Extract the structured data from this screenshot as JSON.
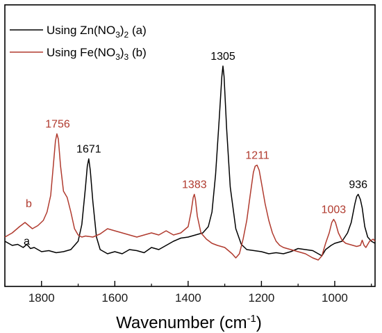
{
  "chart_data": {
    "type": "line",
    "xlabel_main": "Wavenumber (cm",
    "xlabel_sup": "-1",
    "xlabel_end": ")",
    "ylabel": "",
    "xlim": [
      1900,
      890
    ],
    "x_reversed": true,
    "x_ticks": [
      1800,
      1600,
      1400,
      1200,
      1000
    ],
    "y_ticks_shown": false,
    "legend_position": "top-left",
    "colors": {
      "a": "#000000",
      "b": "#b03a2e"
    },
    "series": [
      {
        "name_main": "Using Zn(NO",
        "name_sub": "3",
        "name_mid": ")",
        "name_sub2": "2",
        "name_end": " (a)",
        "curve_label": "a",
        "color": "#000000",
        "points": [
          [
            1900,
            0.06
          ],
          [
            1880,
            0.04
          ],
          [
            1865,
            0.045
          ],
          [
            1850,
            0.03
          ],
          [
            1840,
            0.045
          ],
          [
            1830,
            0.025
          ],
          [
            1820,
            0.03
          ],
          [
            1800,
            0.01
          ],
          [
            1780,
            0.015
          ],
          [
            1760,
            0.005
          ],
          [
            1740,
            0.01
          ],
          [
            1720,
            0.02
          ],
          [
            1700,
            0.06
          ],
          [
            1690,
            0.14
          ],
          [
            1680,
            0.32
          ],
          [
            1675,
            0.42
          ],
          [
            1671,
            0.455
          ],
          [
            1667,
            0.4
          ],
          [
            1660,
            0.25
          ],
          [
            1650,
            0.08
          ],
          [
            1640,
            0.02
          ],
          [
            1620,
            0.0
          ],
          [
            1600,
            0.01
          ],
          [
            1580,
            0.0
          ],
          [
            1560,
            0.02
          ],
          [
            1540,
            0.015
          ],
          [
            1520,
            0.005
          ],
          [
            1500,
            0.03
          ],
          [
            1480,
            0.02
          ],
          [
            1460,
            0.04
          ],
          [
            1440,
            0.06
          ],
          [
            1420,
            0.075
          ],
          [
            1400,
            0.08
          ],
          [
            1380,
            0.09
          ],
          [
            1360,
            0.1
          ],
          [
            1345,
            0.13
          ],
          [
            1335,
            0.2
          ],
          [
            1325,
            0.38
          ],
          [
            1315,
            0.65
          ],
          [
            1308,
            0.85
          ],
          [
            1305,
            0.9
          ],
          [
            1302,
            0.85
          ],
          [
            1295,
            0.6
          ],
          [
            1285,
            0.32
          ],
          [
            1270,
            0.12
          ],
          [
            1255,
            0.045
          ],
          [
            1240,
            0.02
          ],
          [
            1220,
            0.015
          ],
          [
            1200,
            0.01
          ],
          [
            1180,
            0.0
          ],
          [
            1160,
            0.005
          ],
          [
            1140,
            0.0
          ],
          [
            1120,
            0.01
          ],
          [
            1100,
            0.025
          ],
          [
            1080,
            0.02
          ],
          [
            1060,
            0.015
          ],
          [
            1045,
            0.0
          ],
          [
            1035,
            -0.01
          ],
          [
            1025,
            0.02
          ],
          [
            1010,
            0.04
          ],
          [
            1000,
            0.05
          ],
          [
            980,
            0.06
          ],
          [
            965,
            0.1
          ],
          [
            955,
            0.15
          ],
          [
            945,
            0.24
          ],
          [
            940,
            0.275
          ],
          [
            936,
            0.285
          ],
          [
            930,
            0.26
          ],
          [
            925,
            0.22
          ],
          [
            918,
            0.13
          ],
          [
            910,
            0.08
          ],
          [
            900,
            0.06
          ],
          [
            890,
            0.05
          ]
        ],
        "peaks": [
          {
            "x": 1671,
            "label": "1671"
          },
          {
            "x": 1305,
            "label": "1305"
          },
          {
            "x": 936,
            "label": "936"
          }
        ]
      },
      {
        "name_main": "Using Fe(NO",
        "name_sub": "3",
        "name_mid": ")",
        "name_sub2": "3",
        "name_end": " (b)",
        "curve_label": "b",
        "color": "#b03a2e",
        "points": [
          [
            1900,
            0.08
          ],
          [
            1880,
            0.1
          ],
          [
            1860,
            0.13
          ],
          [
            1845,
            0.15
          ],
          [
            1835,
            0.135
          ],
          [
            1825,
            0.12
          ],
          [
            1810,
            0.135
          ],
          [
            1795,
            0.16
          ],
          [
            1785,
            0.2
          ],
          [
            1775,
            0.28
          ],
          [
            1768,
            0.42
          ],
          [
            1762,
            0.54
          ],
          [
            1758,
            0.575
          ],
          [
            1754,
            0.55
          ],
          [
            1748,
            0.42
          ],
          [
            1740,
            0.3
          ],
          [
            1730,
            0.27
          ],
          [
            1720,
            0.2
          ],
          [
            1710,
            0.12
          ],
          [
            1700,
            0.09
          ],
          [
            1690,
            0.08
          ],
          [
            1680,
            0.085
          ],
          [
            1660,
            0.08
          ],
          [
            1640,
            0.095
          ],
          [
            1620,
            0.12
          ],
          [
            1600,
            0.11
          ],
          [
            1580,
            0.1
          ],
          [
            1560,
            0.09
          ],
          [
            1540,
            0.08
          ],
          [
            1520,
            0.09
          ],
          [
            1500,
            0.1
          ],
          [
            1480,
            0.09
          ],
          [
            1460,
            0.11
          ],
          [
            1440,
            0.09
          ],
          [
            1420,
            0.1
          ],
          [
            1400,
            0.13
          ],
          [
            1392,
            0.2
          ],
          [
            1386,
            0.27
          ],
          [
            1383,
            0.285
          ],
          [
            1380,
            0.26
          ],
          [
            1375,
            0.18
          ],
          [
            1365,
            0.1
          ],
          [
            1350,
            0.07
          ],
          [
            1335,
            0.05
          ],
          [
            1320,
            0.04
          ],
          [
            1300,
            0.03
          ],
          [
            1290,
            0.015
          ],
          [
            1280,
            0.0
          ],
          [
            1270,
            -0.02
          ],
          [
            1260,
            0.0
          ],
          [
            1250,
            0.07
          ],
          [
            1240,
            0.16
          ],
          [
            1230,
            0.29
          ],
          [
            1222,
            0.39
          ],
          [
            1217,
            0.42
          ],
          [
            1212,
            0.425
          ],
          [
            1206,
            0.4
          ],
          [
            1198,
            0.32
          ],
          [
            1190,
            0.24
          ],
          [
            1180,
            0.16
          ],
          [
            1170,
            0.1
          ],
          [
            1160,
            0.06
          ],
          [
            1150,
            0.04
          ],
          [
            1140,
            0.03
          ],
          [
            1120,
            0.02
          ],
          [
            1100,
            0.01
          ],
          [
            1080,
            0.0
          ],
          [
            1060,
            -0.02
          ],
          [
            1045,
            -0.03
          ],
          [
            1035,
            -0.01
          ],
          [
            1025,
            0.05
          ],
          [
            1015,
            0.1
          ],
          [
            1008,
            0.15
          ],
          [
            1003,
            0.165
          ],
          [
            998,
            0.15
          ],
          [
            990,
            0.1
          ],
          [
            980,
            0.065
          ],
          [
            970,
            0.05
          ],
          [
            960,
            0.045
          ],
          [
            950,
            0.04
          ],
          [
            940,
            0.035
          ],
          [
            930,
            0.04
          ],
          [
            925,
            0.065
          ],
          [
            920,
            0.04
          ],
          [
            915,
            0.03
          ],
          [
            905,
            0.06
          ],
          [
            895,
            0.07
          ],
          [
            890,
            0.06
          ]
        ],
        "peaks": [
          {
            "x": 1756,
            "label": "1756"
          },
          {
            "x": 1383,
            "label": "1383"
          },
          {
            "x": 1211,
            "label": "1211"
          },
          {
            "x": 1003,
            "label": "1003"
          }
        ]
      }
    ]
  }
}
